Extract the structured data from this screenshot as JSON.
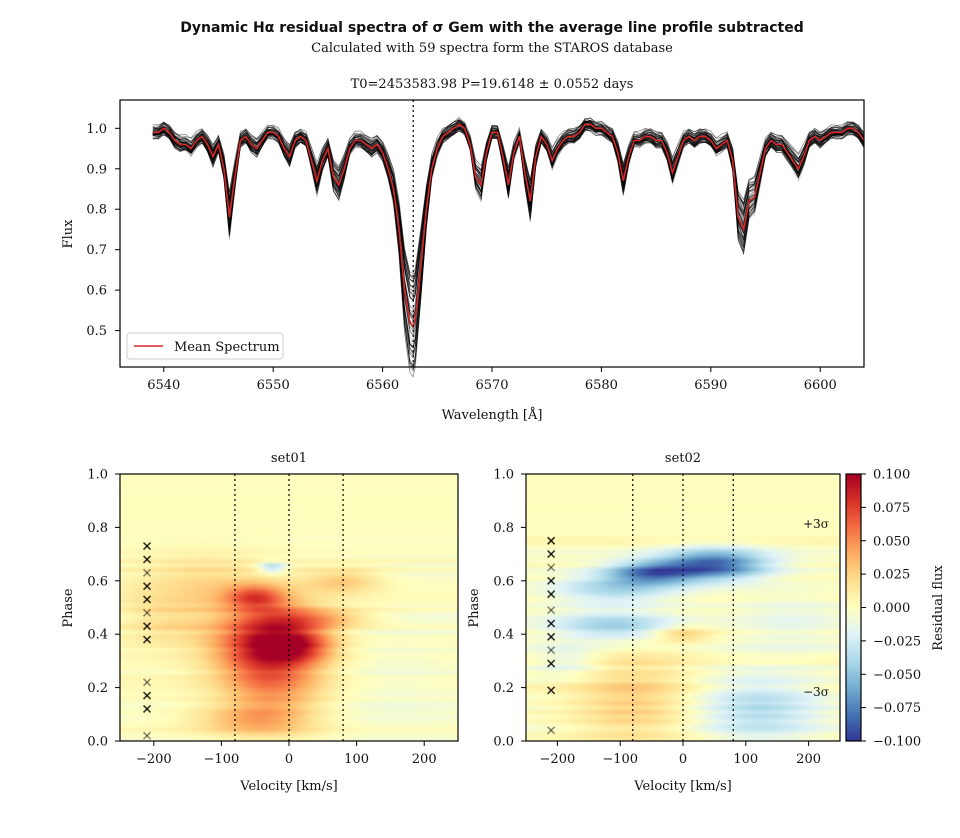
{
  "title": "Dynamic Hα residual spectra of σ Gem with the average line profile subtracted",
  "subtitle": "Calculated with 59 spectra form the STAROS database",
  "chart_data": [
    {
      "type": "line",
      "title": "T0=2453583.98 P=19.6148 ± 0.0552 days",
      "xlabel": "Wavelength [Å]",
      "ylabel": "Flux",
      "xlim": [
        6536,
        6604
      ],
      "ylim": [
        0.41,
        1.07
      ],
      "xticks": [
        6540,
        6550,
        6560,
        6570,
        6580,
        6590,
        6600
      ],
      "yticks": [
        0.5,
        0.6,
        0.7,
        0.8,
        0.9,
        1.0
      ],
      "marker_line_x": 6562.8,
      "legend": {
        "placement": "lower-left",
        "entries": [
          "Mean Spectrum"
        ]
      },
      "mean_color": "#d62728",
      "individual_color": "#000000",
      "individual_count": 59,
      "mean_spectrum": {
        "x": [
          6539.0,
          6539.5,
          6540.0,
          6540.5,
          6541.0,
          6541.5,
          6542.0,
          6542.5,
          6543.0,
          6543.5,
          6544.0,
          6544.5,
          6545.0,
          6545.5,
          6546.0,
          6546.5,
          6547.0,
          6547.5,
          6548.0,
          6548.5,
          6549.0,
          6549.5,
          6550.0,
          6550.5,
          6551.0,
          6551.5,
          6552.0,
          6552.5,
          6553.0,
          6553.5,
          6554.0,
          6554.5,
          6555.0,
          6555.5,
          6556.0,
          6556.5,
          6557.0,
          6557.5,
          6558.0,
          6558.5,
          6559.0,
          6559.5,
          6560.0,
          6560.5,
          6561.0,
          6561.5,
          6562.0,
          6562.5,
          6562.8,
          6563.0,
          6563.5,
          6564.0,
          6564.5,
          6565.0,
          6565.5,
          6566.0,
          6566.5,
          6567.0,
          6567.5,
          6568.0,
          6568.5,
          6569.0,
          6569.5,
          6570.0,
          6570.5,
          6571.0,
          6571.5,
          6572.0,
          6572.5,
          6573.0,
          6573.5,
          6574.0,
          6574.5,
          6575.0,
          6575.5,
          6576.0,
          6576.5,
          6577.0,
          6577.5,
          6578.0,
          6578.5,
          6579.0,
          6579.5,
          6580.0,
          6580.5,
          6581.0,
          6581.5,
          6582.0,
          6582.5,
          6583.0,
          6583.5,
          6584.0,
          6584.5,
          6585.0,
          6585.5,
          6586.0,
          6586.5,
          6587.0,
          6587.5,
          6588.0,
          6588.5,
          6589.0,
          6589.5,
          6590.0,
          6590.5,
          6591.0,
          6591.5,
          6592.0,
          6592.5,
          6593.0,
          6593.5,
          6594.0,
          6594.5,
          6595.0,
          6595.5,
          6596.0,
          6596.5,
          6597.0,
          6597.5,
          6598.0,
          6598.5,
          6599.0,
          6599.5,
          6600.0,
          6600.5,
          6601.0,
          6601.5,
          6602.0,
          6602.5,
          6603.0,
          6603.5,
          6604.0
        ],
        "y": [
          0.99,
          0.99,
          1.0,
          0.99,
          0.97,
          0.96,
          0.96,
          0.95,
          0.97,
          0.98,
          0.96,
          0.93,
          0.96,
          0.9,
          0.78,
          0.88,
          0.97,
          0.98,
          0.96,
          0.95,
          0.97,
          0.99,
          0.99,
          0.98,
          0.95,
          0.93,
          0.97,
          0.98,
          0.97,
          0.92,
          0.87,
          0.92,
          0.95,
          0.88,
          0.86,
          0.9,
          0.95,
          0.97,
          0.97,
          0.96,
          0.95,
          0.96,
          0.94,
          0.9,
          0.85,
          0.75,
          0.6,
          0.52,
          0.51,
          0.53,
          0.66,
          0.8,
          0.9,
          0.95,
          0.98,
          0.99,
          1.0,
          1.01,
          1.0,
          0.96,
          0.88,
          0.86,
          0.94,
          0.99,
          0.99,
          0.93,
          0.86,
          0.94,
          0.98,
          0.89,
          0.82,
          0.93,
          0.98,
          0.96,
          0.92,
          0.95,
          0.97,
          0.98,
          0.98,
          0.99,
          1.01,
          1.01,
          1.0,
          1.0,
          0.99,
          0.98,
          0.94,
          0.87,
          0.93,
          0.97,
          0.97,
          0.98,
          0.98,
          0.97,
          0.97,
          0.94,
          0.89,
          0.93,
          0.97,
          0.98,
          0.97,
          0.98,
          0.98,
          0.97,
          0.95,
          0.96,
          0.97,
          0.92,
          0.78,
          0.75,
          0.82,
          0.83,
          0.89,
          0.95,
          0.97,
          0.96,
          0.96,
          0.94,
          0.92,
          0.9,
          0.93,
          0.97,
          0.98,
          0.97,
          0.98,
          0.99,
          0.99,
          0.99,
          1.0,
          1.0,
          0.99,
          0.97
        ]
      }
    },
    {
      "type": "heatmap",
      "title": "set01",
      "xlabel": "Velocity [km/s]",
      "ylabel": "Phase",
      "xlim": [
        -250,
        250
      ],
      "ylim": [
        0.0,
        1.0
      ],
      "xticks": [
        -200,
        -100,
        0,
        100,
        200
      ],
      "yticks": [
        0.0,
        0.2,
        0.4,
        0.6,
        0.8,
        1.0
      ],
      "vlines_x": [
        -80,
        0,
        80
      ],
      "marker_x": -210,
      "marker_phases": [
        0.02,
        0.12,
        0.17,
        0.22,
        0.38,
        0.43,
        0.48,
        0.53,
        0.58,
        0.63,
        0.68,
        0.73
      ],
      "blobs": [
        {
          "v": -35,
          "p": 0.38,
          "sv": 55,
          "sp": 0.11,
          "a": 0.075
        },
        {
          "v": 10,
          "p": 0.36,
          "sv": 40,
          "sp": 0.045,
          "a": 0.05
        },
        {
          "v": -20,
          "p": 0.2,
          "sv": 55,
          "sp": 0.12,
          "a": 0.035
        },
        {
          "v": -50,
          "p": 0.54,
          "sv": 30,
          "sp": 0.03,
          "a": 0.045
        },
        {
          "v": 40,
          "p": 0.46,
          "sv": 60,
          "sp": 0.025,
          "a": 0.04
        },
        {
          "v": 80,
          "p": 0.6,
          "sv": 40,
          "sp": 0.035,
          "a": 0.03
        },
        {
          "v": -130,
          "p": 0.6,
          "sv": 80,
          "sp": 0.07,
          "a": 0.022
        },
        {
          "v": -25,
          "p": 0.65,
          "sv": 15,
          "sp": 0.015,
          "a": -0.045
        },
        {
          "v": 150,
          "p": 0.25,
          "sv": 90,
          "sp": 0.15,
          "a": -0.008
        },
        {
          "v": -60,
          "p": 0.08,
          "sv": 60,
          "sp": 0.04,
          "a": 0.03
        },
        {
          "v": -180,
          "p": 0.45,
          "sv": 50,
          "sp": 0.06,
          "a": 0.02
        }
      ]
    },
    {
      "type": "heatmap",
      "title": "set02",
      "xlabel": "Velocity [km/s]",
      "ylabel": "Phase",
      "xlim": [
        -250,
        250
      ],
      "ylim": [
        0.0,
        1.0
      ],
      "xticks": [
        -200,
        -100,
        0,
        100,
        200
      ],
      "yticks": [
        0.0,
        0.2,
        0.4,
        0.6,
        0.8,
        1.0
      ],
      "vlines_x": [
        -80,
        0,
        80
      ],
      "marker_x": -210,
      "marker_phases": [
        0.04,
        0.19,
        0.29,
        0.34,
        0.39,
        0.44,
        0.49,
        0.55,
        0.6,
        0.65,
        0.7,
        0.75
      ],
      "blobs": [
        {
          "v": 50,
          "p": 0.66,
          "sv": 60,
          "sp": 0.04,
          "a": -0.085
        },
        {
          "v": -50,
          "p": 0.63,
          "sv": 50,
          "sp": 0.03,
          "a": -0.07
        },
        {
          "v": -110,
          "p": 0.57,
          "sv": 70,
          "sp": 0.04,
          "a": -0.04
        },
        {
          "v": -110,
          "p": 0.43,
          "sv": 70,
          "sp": 0.035,
          "a": -0.045
        },
        {
          "v": 0,
          "p": 0.4,
          "sv": 30,
          "sp": 0.02,
          "a": 0.03
        },
        {
          "v": -80,
          "p": 0.15,
          "sv": 70,
          "sp": 0.13,
          "a": 0.028
        },
        {
          "v": 120,
          "p": 0.12,
          "sv": 70,
          "sp": 0.09,
          "a": -0.035
        },
        {
          "v": 170,
          "p": 0.45,
          "sv": 60,
          "sp": 0.08,
          "a": -0.012
        },
        {
          "v": -180,
          "p": 0.3,
          "sv": 40,
          "sp": 0.04,
          "a": -0.02
        }
      ]
    }
  ],
  "colorbar": {
    "label": "Residual flux",
    "range": [
      -0.1,
      0.1
    ],
    "ticks": [
      0.1,
      0.075,
      0.05,
      0.025,
      0.0,
      -0.025,
      -0.05,
      -0.075,
      -0.1
    ],
    "tick_labels": [
      "0.100",
      "0.075",
      "0.050",
      "0.025",
      "0.000",
      "−0.025",
      "−0.050",
      "−0.075",
      "−0.100"
    ],
    "sigma_labels": [
      {
        "text": "+3σ",
        "value": 0.063
      },
      {
        "text": "−3σ",
        "value": -0.063
      }
    ]
  },
  "colormap": [
    "#313695",
    "#4575b4",
    "#74add1",
    "#abd9e9",
    "#e0f3f8",
    "#ffffbf",
    "#fee090",
    "#fdae61",
    "#f46d43",
    "#d73027",
    "#a50026"
  ]
}
